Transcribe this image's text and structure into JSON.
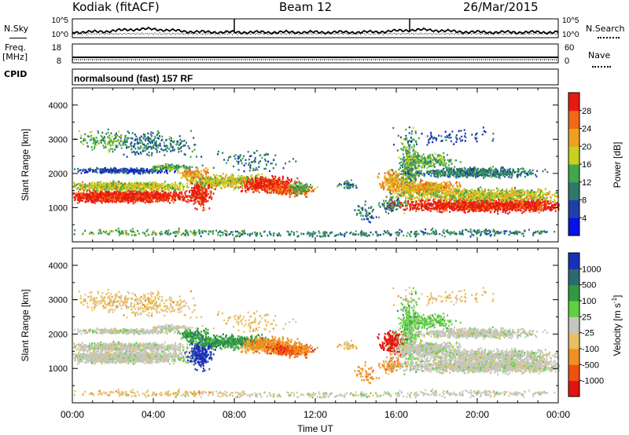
{
  "header": {
    "station": "Kodiak (fitACF)",
    "beam": "Beam 12",
    "date": "26/Mar/2015"
  },
  "panels": {
    "nsky": {
      "label": "N.Sky",
      "ticks": [
        "10^5",
        "10^0"
      ],
      "right_label": "N.Search"
    },
    "freq": {
      "label_line1": "Freq.",
      "label_line2": "[MHz]",
      "ticks": [
        "18",
        "8"
      ],
      "right_ticks": [
        "60",
        "0"
      ],
      "right_label": "Nave"
    },
    "cpid": {
      "label": "CPID",
      "text": "normalsound (fast) 157 RF"
    }
  },
  "chart_data": [
    {
      "type": "heatmap",
      "name": "power",
      "ylabel": "Slant Range [km]",
      "ylim": [
        0,
        4500
      ],
      "yticks": [
        "1000",
        "2000",
        "3000",
        "4000"
      ],
      "colorbar": {
        "label": "Power [dB]",
        "ticks": [
          "4",
          "8",
          "12",
          "16",
          "20",
          "24",
          "28"
        ],
        "colors": [
          "#0a10e8",
          "#1e40a8",
          "#2d7a6a",
          "#3fa848",
          "#c8d020",
          "#f0a020",
          "#f06818",
          "#e81a10"
        ]
      }
    },
    {
      "type": "heatmap",
      "name": "velocity",
      "ylabel": "Slant Range [km]",
      "ylim": [
        0,
        4500
      ],
      "yticks": [
        "1000",
        "2000",
        "3000",
        "4000"
      ],
      "colorbar": {
        "label": "Velocity [m s^-1]",
        "ticks": [
          "1000",
          "500",
          "100",
          "25",
          "-25",
          "-100",
          "-500",
          "-1000"
        ],
        "colors": [
          "#1a30b8",
          "#2c6a70",
          "#2f9a40",
          "#60d040",
          "#c6c6c0",
          "#e8c060",
          "#f09020",
          "#f05010",
          "#e01410"
        ]
      }
    }
  ],
  "xaxis": {
    "label": "Time UT",
    "ticks": [
      "00:00",
      "04:00",
      "08:00",
      "12:00",
      "16:00",
      "20:00",
      "00:00"
    ]
  }
}
